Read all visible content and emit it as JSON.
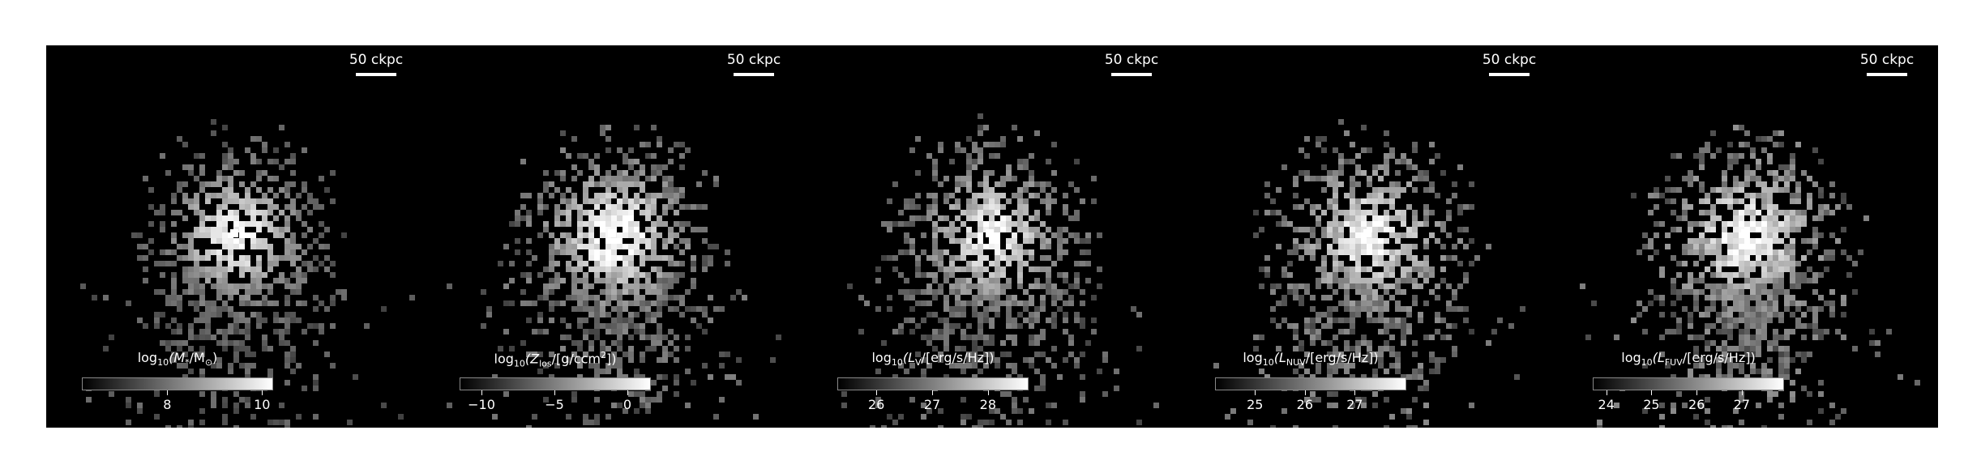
{
  "figure": {
    "panels": [
      {
        "id": "stellar-mass",
        "scale_label": "50 ckpc",
        "colorbar": {
          "parts": [
            "log",
            "10",
            "(M",
            "*",
            "/M",
            "⊙",
            ")"
          ],
          "min": 6.2,
          "max": 10.2,
          "ticks": [
            {
              "value": 8,
              "label": "8"
            },
            {
              "value": 10,
              "label": "10"
            }
          ]
        },
        "brightness": 0.55,
        "core": 0.9
      },
      {
        "id": "metallicity",
        "scale_label": "50 ckpc",
        "colorbar": {
          "parts": [
            "log",
            "10",
            "(Z",
            "los",
            "/[g/ccm",
            "2",
            "])"
          ],
          "min": -11.5,
          "max": 1.5,
          "ticks": [
            {
              "value": -10,
              "label": "−10"
            },
            {
              "value": -5,
              "label": "−5"
            },
            {
              "value": 0,
              "label": "0"
            }
          ]
        },
        "brightness": 0.75,
        "core": 0.95
      },
      {
        "id": "v-luminosity",
        "scale_label": "50 ckpc",
        "colorbar": {
          "parts": [
            "log",
            "10",
            "(L",
            "V",
            "/[erg/s/Hz])",
            "",
            ""
          ]
        },
        "brightness": 0.7,
        "core": 0.85
      },
      {
        "id": "nuv-luminosity",
        "scale_label": "50 ckpc",
        "colorbar": {
          "parts": [
            "log",
            "10",
            "(L",
            "NUV",
            "/[erg/s/Hz])",
            "",
            ""
          ]
        },
        "brightness": 0.85,
        "core": 0.8
      },
      {
        "id": "fuv-luminosity",
        "scale_label": "50 ckpc",
        "colorbar": {
          "parts": [
            "log",
            "10",
            "(L",
            "FUV",
            "/[erg/s/Hz])",
            "",
            ""
          ]
        },
        "brightness": 0.9,
        "core": 0.8
      }
    ],
    "ticks_extra": [
      {
        "min": 25.3,
        "max": 28.7,
        "ticks": [
          {
            "value": 26,
            "label": "26"
          },
          {
            "value": 27,
            "label": "27"
          },
          {
            "value": 28,
            "label": "28"
          }
        ]
      },
      {
        "min": 24.2,
        "max": 28.0,
        "ticks": [
          {
            "value": 25,
            "label": "25"
          },
          {
            "value": 26,
            "label": "26"
          },
          {
            "value": 27,
            "label": "27"
          }
        ]
      },
      {
        "min": 23.7,
        "max": 27.9,
        "ticks": [
          {
            "value": 24,
            "label": "24"
          },
          {
            "value": 25,
            "label": "25"
          },
          {
            "value": 26,
            "label": "26"
          },
          {
            "value": 27,
            "label": "27"
          }
        ]
      }
    ]
  }
}
